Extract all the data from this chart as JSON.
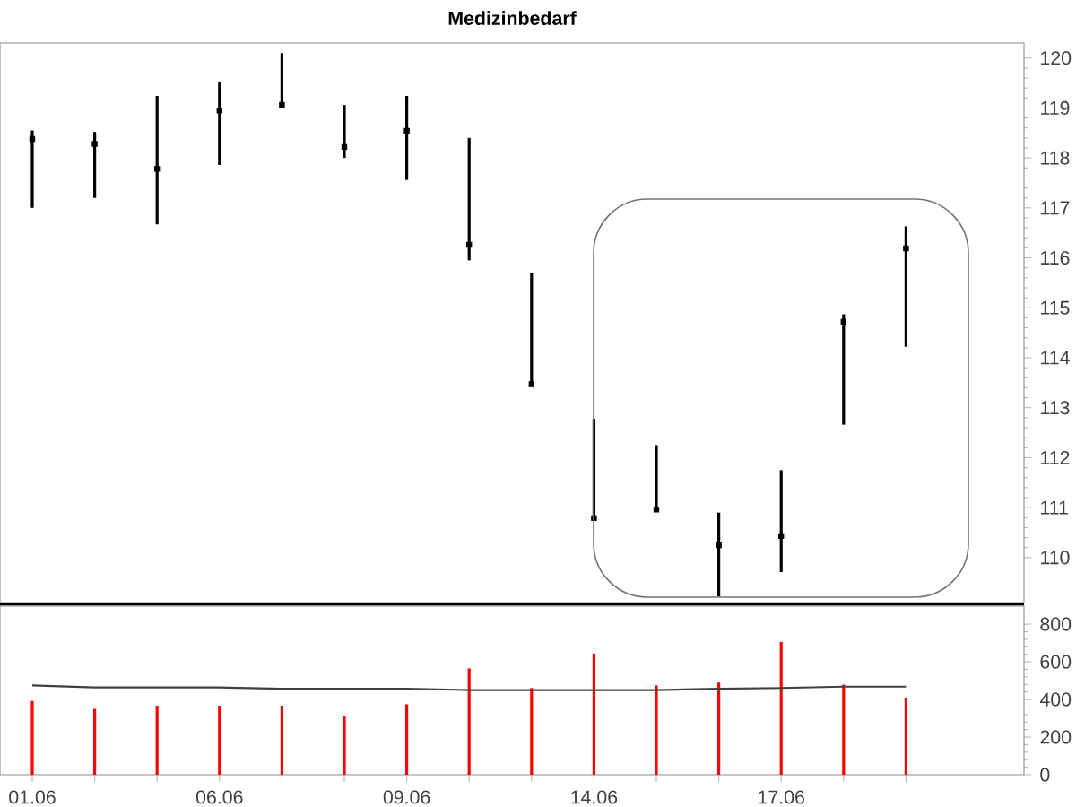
{
  "chart_data": [
    {
      "type": "scatter",
      "title": "Medizinbedarf",
      "categories": [
        "01.06",
        null,
        null,
        "06.06",
        null,
        null,
        "09.06",
        null,
        null,
        "14.06",
        null,
        null,
        "17.06",
        null,
        null
      ],
      "ylim": [
        109.1,
        120.3
      ],
      "yticks": [
        110,
        111,
        112,
        113,
        114,
        115,
        116,
        117,
        118,
        119,
        120
      ],
      "tick_labels": "y",
      "grid": false,
      "series": [
        {
          "color": "#000000",
          "marker": "square",
          "values": [
            118.38,
            118.28,
            117.78,
            118.95,
            119.06,
            118.22,
            118.54,
            116.26,
            113.47,
            110.79,
            110.96,
            110.25,
            110.43,
            114.72,
            116.19
          ],
          "errors": [
            [
              117.0,
              118.55
            ],
            [
              117.2,
              118.52
            ],
            [
              116.67,
              119.24
            ],
            [
              117.86,
              119.53
            ],
            [
              119.0,
              120.1
            ],
            [
              118.0,
              119.06
            ],
            [
              117.56,
              119.24
            ],
            [
              115.95,
              118.4
            ],
            [
              113.47,
              115.69
            ],
            [
              110.79,
              112.78
            ],
            [
              110.96,
              112.25
            ],
            [
              109.22,
              110.9
            ],
            [
              109.71,
              111.75
            ],
            [
              112.66,
              114.87
            ],
            [
              114.22,
              116.63
            ]
          ]
        }
      ]
    },
    {
      "type": "bar",
      "categories": [
        "01.06",
        null,
        null,
        "06.06",
        null,
        null,
        "09.06",
        null,
        null,
        "14.06",
        null,
        null,
        "17.06",
        null,
        null
      ],
      "ylim": [
        0,
        896
      ],
      "yticks": [
        0,
        200,
        400,
        600,
        800
      ],
      "grid": false,
      "series": [
        {
          "color": "#ff0000",
          "values": [
            392,
            350,
            367,
            367,
            367,
            313,
            374,
            565,
            461,
            644,
            475,
            490,
            706,
            479,
            410
          ]
        },
        {
          "type": "line",
          "color": "#404040",
          "values": [
            475,
            464,
            464,
            464,
            457,
            457,
            457,
            450,
            450,
            450,
            450,
            457,
            461,
            468,
            468
          ]
        }
      ]
    }
  ]
}
